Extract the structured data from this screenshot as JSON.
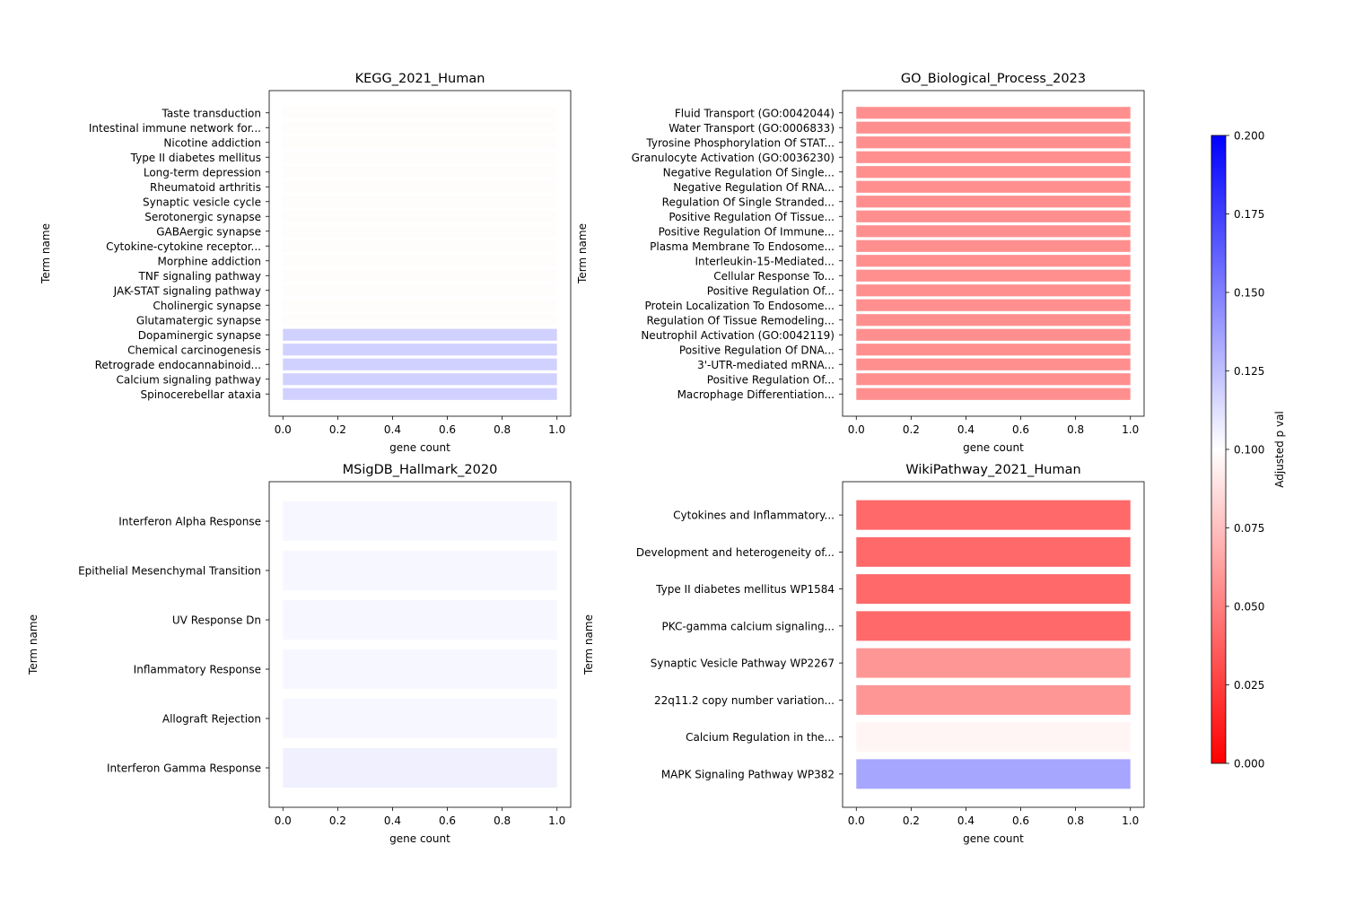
{
  "colorbar": {
    "label": "Adjusted p val",
    "ticks": [
      "0.000",
      "0.025",
      "0.050",
      "0.075",
      "0.100",
      "0.125",
      "0.150",
      "0.175",
      "0.200"
    ],
    "range": [
      0,
      0.2
    ],
    "colors": [
      "#ff0000",
      "#ffffff",
      "#0000ff"
    ]
  },
  "chart_data": [
    {
      "type": "bar",
      "orientation": "horizontal",
      "title": "KEGG_2021_Human",
      "xlabel": "gene count",
      "ylabel": "Term name",
      "xlim": [
        0,
        1.0
      ],
      "x_ticks": [
        "0.0",
        "0.2",
        "0.4",
        "0.6",
        "0.8",
        "1.0"
      ],
      "categories": [
        "Taste transduction",
        "Intestinal immune network for...",
        "Nicotine addiction",
        "Type II diabetes mellitus",
        "Long-term depression",
        "Rheumatoid arthritis",
        "Synaptic vesicle cycle",
        "Serotonergic synapse",
        "GABAergic synapse",
        "Cytokine-cytokine receptor...",
        "Morphine addiction",
        "TNF signaling pathway",
        "JAK-STAT signaling pathway",
        "Cholinergic synapse",
        "Glutamatergic synapse",
        "Dopaminergic synapse",
        "Chemical carcinogenesis",
        "Retrograde endocannabinoid...",
        "Calcium signaling pathway",
        "Spinocerebellar ataxia"
      ],
      "values": [
        1,
        1,
        1,
        1,
        1,
        1,
        1,
        1,
        1,
        1,
        1,
        1,
        1,
        1,
        1,
        1,
        1,
        1,
        1,
        1
      ],
      "adjusted_p": [
        0.099,
        0.099,
        0.099,
        0.099,
        0.099,
        0.099,
        0.099,
        0.099,
        0.099,
        0.099,
        0.099,
        0.099,
        0.099,
        0.099,
        0.099,
        0.118,
        0.118,
        0.118,
        0.118,
        0.118
      ]
    },
    {
      "type": "bar",
      "orientation": "horizontal",
      "title": "GO_Biological_Process_2023",
      "xlabel": "gene count",
      "ylabel": "Term name",
      "xlim": [
        0,
        1.0
      ],
      "x_ticks": [
        "0.0",
        "0.2",
        "0.4",
        "0.6",
        "0.8",
        "1.0"
      ],
      "categories": [
        "Fluid Transport (GO:0042044)",
        "Water Transport (GO:0006833)",
        "Tyrosine Phosphorylation Of STAT...",
        "Granulocyte Activation (GO:0036230)",
        "Negative Regulation Of Single...",
        "Negative Regulation Of RNA...",
        "Regulation Of Single Stranded...",
        "Positive Regulation Of Tissue...",
        "Positive Regulation Of Immune...",
        "Plasma Membrane To Endosome...",
        "Interleukin-15-Mediated...",
        "Cellular Response To...",
        "Positive Regulation Of...",
        "Protein Localization To Endosome...",
        "Regulation Of Tissue Remodeling...",
        "Neutrophil Activation (GO:0042119)",
        "Positive Regulation Of DNA...",
        "3'-UTR-mediated mRNA...",
        "Positive Regulation Of...",
        "Macrophage Differentiation..."
      ],
      "values": [
        1,
        1,
        1,
        1,
        1,
        1,
        1,
        1,
        1,
        1,
        1,
        1,
        1,
        1,
        1,
        1,
        1,
        1,
        1,
        1
      ],
      "adjusted_p": [
        0.056,
        0.056,
        0.056,
        0.056,
        0.056,
        0.056,
        0.056,
        0.056,
        0.056,
        0.056,
        0.056,
        0.056,
        0.056,
        0.056,
        0.056,
        0.056,
        0.056,
        0.056,
        0.056,
        0.056
      ]
    },
    {
      "type": "bar",
      "orientation": "horizontal",
      "title": "MSigDB_Hallmark_2020",
      "xlabel": "gene count",
      "ylabel": "Term name",
      "xlim": [
        0,
        1.0
      ],
      "x_ticks": [
        "0.0",
        "0.2",
        "0.4",
        "0.6",
        "0.8",
        "1.0"
      ],
      "categories": [
        "Interferon Alpha Response",
        "Epithelial Mesenchymal Transition",
        "UV Response Dn",
        "Inflammatory Response",
        "Allograft Rejection",
        "Interferon Gamma Response"
      ],
      "values": [
        1,
        1,
        1,
        1,
        1,
        1
      ],
      "adjusted_p": [
        0.103,
        0.103,
        0.103,
        0.103,
        0.103,
        0.106
      ]
    },
    {
      "type": "bar",
      "orientation": "horizontal",
      "title": "WikiPathway_2021_Human",
      "xlabel": "gene count",
      "ylabel": "Term name",
      "xlim": [
        0,
        1.0
      ],
      "x_ticks": [
        "0.0",
        "0.2",
        "0.4",
        "0.6",
        "0.8",
        "1.0"
      ],
      "categories": [
        "Cytokines and Inflammatory...",
        "Development and heterogeneity of...",
        "Type II diabetes mellitus WP1584",
        "PKC-gamma calcium signaling...",
        "Synaptic Vesicle Pathway WP2267",
        "22q11.2 copy number variation...",
        "Calcium Regulation in the...",
        "MAPK Signaling Pathway WP382"
      ],
      "values": [
        1,
        1,
        1,
        1,
        1,
        1,
        1,
        1
      ],
      "adjusted_p": [
        0.041,
        0.041,
        0.041,
        0.041,
        0.059,
        0.059,
        0.096,
        0.135
      ]
    }
  ]
}
